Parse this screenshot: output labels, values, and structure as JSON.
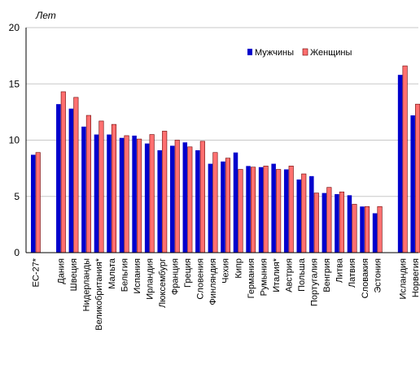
{
  "chart_data": {
    "type": "bar",
    "ylabel": "Лет",
    "ylim": [
      0,
      20
    ],
    "yticks": [
      0,
      5,
      10,
      15,
      20
    ],
    "grid": true,
    "legend_position": "top-right",
    "categories": [
      "ЕС-27*",
      "Дания",
      "Швеция",
      "Нидерланды",
      "Великобритания*",
      "Мальта",
      "Бельгия",
      "Испания",
      "Ирландия",
      "Люксембург",
      "Франция",
      "Греция",
      "Словения",
      "Финляндия",
      "Чехия",
      "Кипр",
      "Германия",
      "Румыния",
      "Италия*",
      "Австрия",
      "Польша",
      "Португалия",
      "Венгрия",
      "Литва",
      "Латвия",
      "Словакия",
      "Эстония",
      "Исландия",
      "Норвегия"
    ],
    "groups": [
      [
        0
      ],
      [
        1,
        26
      ],
      [
        27,
        28
      ]
    ],
    "series": [
      {
        "name": "Мужчины",
        "color": "#0000cc",
        "values": [
          8.7,
          13.2,
          12.8,
          11.2,
          10.5,
          10.5,
          10.2,
          10.4,
          9.7,
          9.1,
          9.5,
          9.8,
          9.1,
          7.9,
          8.1,
          8.9,
          7.7,
          7.6,
          7.9,
          7.4,
          6.5,
          6.8,
          5.3,
          5.2,
          5.1,
          4.1,
          3.5,
          15.8,
          12.2
        ],
        "color_key": "blue"
      },
      {
        "name": "Женщины",
        "color": "#ff7070",
        "values": [
          8.9,
          14.3,
          13.8,
          12.2,
          11.7,
          11.4,
          10.4,
          10.1,
          10.5,
          10.8,
          10.0,
          9.4,
          9.9,
          8.9,
          8.4,
          7.4,
          7.6,
          7.7,
          7.4,
          7.7,
          7.0,
          5.3,
          5.8,
          5.4,
          4.3,
          4.1,
          4.1,
          16.6,
          13.2
        ],
        "color_key": "salmon"
      }
    ]
  }
}
